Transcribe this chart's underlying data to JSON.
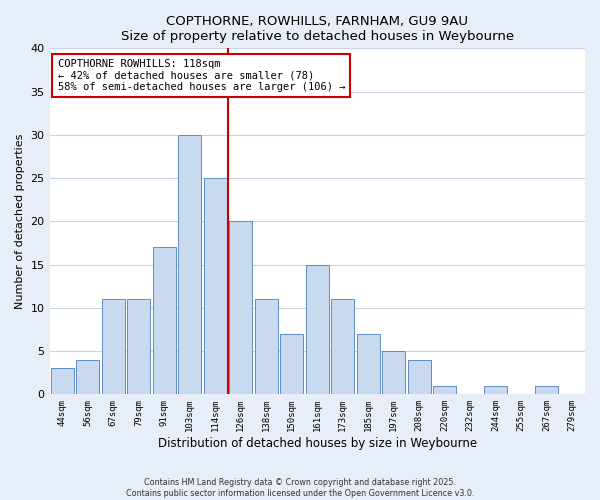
{
  "title": "COPTHORNE, ROWHILLS, FARNHAM, GU9 9AU",
  "subtitle": "Size of property relative to detached houses in Weybourne",
  "xlabel": "Distribution of detached houses by size in Weybourne",
  "ylabel": "Number of detached properties",
  "bar_labels": [
    "44sqm",
    "56sqm",
    "67sqm",
    "79sqm",
    "91sqm",
    "103sqm",
    "114sqm",
    "126sqm",
    "138sqm",
    "150sqm",
    "161sqm",
    "173sqm",
    "185sqm",
    "197sqm",
    "208sqm",
    "220sqm",
    "232sqm",
    "244sqm",
    "255sqm",
    "267sqm",
    "279sqm"
  ],
  "bar_values": [
    3,
    4,
    11,
    11,
    17,
    30,
    25,
    20,
    11,
    7,
    15,
    11,
    7,
    5,
    4,
    1,
    0,
    1,
    0,
    1,
    0
  ],
  "bar_color": "#c9d9ef",
  "bar_edge_color": "#5b8cc8",
  "ylim": [
    0,
    40
  ],
  "yticks": [
    0,
    5,
    10,
    15,
    20,
    25,
    30,
    35,
    40
  ],
  "vline_color": "#cc0000",
  "annotation_title": "COPTHORNE ROWHILLS: 118sqm",
  "annotation_line1": "← 42% of detached houses are smaller (78)",
  "annotation_line2": "58% of semi-detached houses are larger (106) →",
  "footer1": "Contains HM Land Registry data © Crown copyright and database right 2025.",
  "footer2": "Contains public sector information licensed under the Open Government Licence v3.0.",
  "background_color": "#e8eef8",
  "plot_bg_color": "#ffffff",
  "grid_color": "#c8d4e8"
}
